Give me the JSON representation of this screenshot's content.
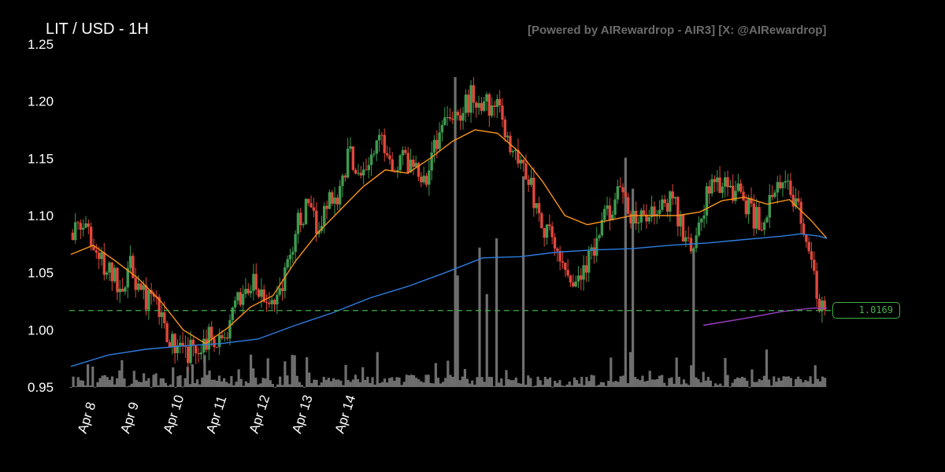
{
  "header": {
    "title": "LIT / USD - 1H",
    "credit": "[Powered by AIRewardrop - AIR3] [X: @AIRewardrop]"
  },
  "price_badge": {
    "value": "1.0169"
  },
  "colors": {
    "background": "#000000",
    "up_candle": "#3f9a4f",
    "down_candle": "#e0473c",
    "volume": "#6e6e6e",
    "ma_short": "#f7931a",
    "ma_long": "#2f7de1",
    "ma_extra": "#9b3fc7",
    "last_price_line": "#43b049"
  },
  "chart_data": {
    "type": "candlestick",
    "title": "LIT / USD - 1H",
    "interval": "1H",
    "ylim": [
      0.95,
      1.25
    ],
    "yticks": [
      "0.95",
      "1.00",
      "1.05",
      "1.10",
      "1.15",
      "1.20",
      "1.25"
    ],
    "xticks": [
      "Apr 8",
      "Apr 9",
      "Apr 10",
      "Apr 11",
      "Apr 12",
      "Apr 13",
      "Apr 14"
    ],
    "last_price": 1.0169,
    "grid": false,
    "legend": "none",
    "price_path": [
      {
        "t": 0,
        "p": 1.085
      },
      {
        "t": 6,
        "p": 1.095
      },
      {
        "t": 12,
        "p": 1.072
      },
      {
        "t": 18,
        "p": 1.055
      },
      {
        "t": 26,
        "p": 1.04
      },
      {
        "t": 32,
        "p": 1.055
      },
      {
        "t": 38,
        "p": 1.03
      },
      {
        "t": 44,
        "p": 1.025
      },
      {
        "t": 50,
        "p": 1.005
      },
      {
        "t": 56,
        "p": 0.982
      },
      {
        "t": 62,
        "p": 0.978
      },
      {
        "t": 70,
        "p": 0.99
      },
      {
        "t": 76,
        "p": 0.995
      },
      {
        "t": 82,
        "p": 0.99
      },
      {
        "t": 86,
        "p": 1.01
      },
      {
        "t": 92,
        "p": 1.035
      },
      {
        "t": 98,
        "p": 1.04
      },
      {
        "t": 104,
        "p": 1.02
      },
      {
        "t": 110,
        "p": 1.03
      },
      {
        "t": 116,
        "p": 1.055
      },
      {
        "t": 120,
        "p": 1.09
      },
      {
        "t": 126,
        "p": 1.105
      },
      {
        "t": 132,
        "p": 1.09
      },
      {
        "t": 138,
        "p": 1.115
      },
      {
        "t": 144,
        "p": 1.12
      },
      {
        "t": 148,
        "p": 1.155
      },
      {
        "t": 154,
        "p": 1.14
      },
      {
        "t": 160,
        "p": 1.145
      },
      {
        "t": 166,
        "p": 1.17
      },
      {
        "t": 172,
        "p": 1.145
      },
      {
        "t": 178,
        "p": 1.15
      },
      {
        "t": 184,
        "p": 1.145
      },
      {
        "t": 190,
        "p": 1.135
      },
      {
        "t": 196,
        "p": 1.17
      },
      {
        "t": 202,
        "p": 1.195
      },
      {
        "t": 208,
        "p": 1.185
      },
      {
        "t": 214,
        "p": 1.205
      },
      {
        "t": 220,
        "p": 1.195
      },
      {
        "t": 226,
        "p": 1.2
      },
      {
        "t": 232,
        "p": 1.175
      },
      {
        "t": 238,
        "p": 1.15
      },
      {
        "t": 244,
        "p": 1.14
      },
      {
        "t": 250,
        "p": 1.095
      },
      {
        "t": 256,
        "p": 1.08
      },
      {
        "t": 262,
        "p": 1.06
      },
      {
        "t": 268,
        "p": 1.045
      },
      {
        "t": 274,
        "p": 1.05
      },
      {
        "t": 280,
        "p": 1.07
      },
      {
        "t": 286,
        "p": 1.1
      },
      {
        "t": 292,
        "p": 1.12
      },
      {
        "t": 298,
        "p": 1.1
      },
      {
        "t": 304,
        "p": 1.095
      },
      {
        "t": 310,
        "p": 1.1
      },
      {
        "t": 316,
        "p": 1.105
      },
      {
        "t": 322,
        "p": 1.115
      },
      {
        "t": 328,
        "p": 1.08
      },
      {
        "t": 334,
        "p": 1.075
      },
      {
        "t": 340,
        "p": 1.12
      },
      {
        "t": 346,
        "p": 1.13
      },
      {
        "t": 352,
        "p": 1.125
      },
      {
        "t": 358,
        "p": 1.12
      },
      {
        "t": 364,
        "p": 1.1
      },
      {
        "t": 370,
        "p": 1.095
      },
      {
        "t": 376,
        "p": 1.12
      },
      {
        "t": 382,
        "p": 1.125
      },
      {
        "t": 388,
        "p": 1.115
      },
      {
        "t": 392,
        "p": 1.085
      },
      {
        "t": 396,
        "p": 1.05
      },
      {
        "t": 400,
        "p": 1.02
      },
      {
        "t": 404,
        "p": 1.017
      }
    ],
    "series": [
      {
        "name": "MA short",
        "color": "#f7931a",
        "points": [
          {
            "t": 0,
            "v": 1.066
          },
          {
            "t": 12,
            "v": 1.074
          },
          {
            "t": 24,
            "v": 1.06
          },
          {
            "t": 36,
            "v": 1.045
          },
          {
            "t": 48,
            "v": 1.025
          },
          {
            "t": 60,
            "v": 1.0
          },
          {
            "t": 72,
            "v": 0.988
          },
          {
            "t": 84,
            "v": 1.002
          },
          {
            "t": 96,
            "v": 1.02
          },
          {
            "t": 108,
            "v": 1.03
          },
          {
            "t": 120,
            "v": 1.06
          },
          {
            "t": 132,
            "v": 1.085
          },
          {
            "t": 144,
            "v": 1.105
          },
          {
            "t": 156,
            "v": 1.125
          },
          {
            "t": 168,
            "v": 1.14
          },
          {
            "t": 180,
            "v": 1.137
          },
          {
            "t": 192,
            "v": 1.15
          },
          {
            "t": 204,
            "v": 1.165
          },
          {
            "t": 216,
            "v": 1.175
          },
          {
            "t": 228,
            "v": 1.172
          },
          {
            "t": 240,
            "v": 1.155
          },
          {
            "t": 252,
            "v": 1.13
          },
          {
            "t": 264,
            "v": 1.1
          },
          {
            "t": 276,
            "v": 1.092
          },
          {
            "t": 288,
            "v": 1.096
          },
          {
            "t": 300,
            "v": 1.1
          },
          {
            "t": 312,
            "v": 1.1
          },
          {
            "t": 324,
            "v": 1.1
          },
          {
            "t": 336,
            "v": 1.103
          },
          {
            "t": 348,
            "v": 1.113
          },
          {
            "t": 360,
            "v": 1.116
          },
          {
            "t": 372,
            "v": 1.11
          },
          {
            "t": 384,
            "v": 1.114
          },
          {
            "t": 396,
            "v": 1.095
          },
          {
            "t": 404,
            "v": 1.08
          }
        ]
      },
      {
        "name": "MA long",
        "color": "#2f7de1",
        "points": [
          {
            "t": 0,
            "v": 0.968
          },
          {
            "t": 20,
            "v": 0.978
          },
          {
            "t": 40,
            "v": 0.983
          },
          {
            "t": 60,
            "v": 0.986
          },
          {
            "t": 80,
            "v": 0.988
          },
          {
            "t": 100,
            "v": 0.992
          },
          {
            "t": 120,
            "v": 1.004
          },
          {
            "t": 140,
            "v": 1.015
          },
          {
            "t": 160,
            "v": 1.028
          },
          {
            "t": 180,
            "v": 1.038
          },
          {
            "t": 200,
            "v": 1.05
          },
          {
            "t": 220,
            "v": 1.063
          },
          {
            "t": 240,
            "v": 1.064
          },
          {
            "t": 260,
            "v": 1.068
          },
          {
            "t": 280,
            "v": 1.07
          },
          {
            "t": 300,
            "v": 1.071
          },
          {
            "t": 320,
            "v": 1.074
          },
          {
            "t": 340,
            "v": 1.076
          },
          {
            "t": 360,
            "v": 1.079
          },
          {
            "t": 380,
            "v": 1.082
          },
          {
            "t": 390,
            "v": 1.084
          },
          {
            "t": 400,
            "v": 1.082
          },
          {
            "t": 404,
            "v": 1.08
          }
        ]
      },
      {
        "name": "MA extra",
        "color": "#9b3fc7",
        "points": [
          {
            "t": 338,
            "v": 1.004
          },
          {
            "t": 360,
            "v": 1.01
          },
          {
            "t": 380,
            "v": 1.016
          },
          {
            "t": 396,
            "v": 1.019
          },
          {
            "t": 404,
            "v": 1.019
          }
        ]
      }
    ],
    "volume": {
      "spikes": [
        {
          "t": 205,
          "v": 100
        },
        {
          "t": 207,
          "v": 36
        },
        {
          "t": 218,
          "v": 45
        },
        {
          "t": 222,
          "v": 30
        },
        {
          "t": 228,
          "v": 48
        },
        {
          "t": 242,
          "v": 68
        },
        {
          "t": 245,
          "v": 40
        },
        {
          "t": 296,
          "v": 74
        },
        {
          "t": 300,
          "v": 64
        },
        {
          "t": 314,
          "v": 42
        },
        {
          "t": 318,
          "v": 26
        },
        {
          "t": 333,
          "v": 44
        },
        {
          "t": 340,
          "v": 50
        }
      ]
    }
  }
}
